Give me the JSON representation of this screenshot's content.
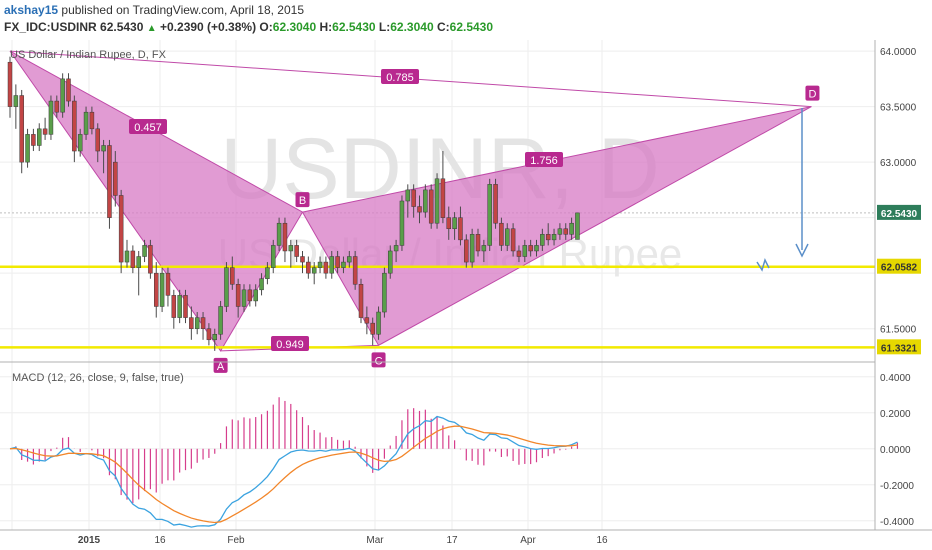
{
  "header": {
    "author": "akshay15",
    "published_text": "published on TradingView.com, April 18, 2015",
    "symbol": "FX_IDC:USDINR",
    "last": "62.5430",
    "change": "+0.2390 (+0.38%)",
    "open_label": "O:",
    "open": "62.3040",
    "high_label": "H:",
    "high": "62.5430",
    "low_label": "L:",
    "low": "62.3040",
    "close_label": "C:",
    "close": "62.5430"
  },
  "chart_data": {
    "type": "candlestick",
    "title": "US Dollar / Indian Rupee, D, FX",
    "watermark_symbol": "USDINR, D",
    "watermark_name": "US Dollar / Indian Rupee",
    "price_axis": {
      "ticks": [
        "64.0000",
        "63.5000",
        "63.0000",
        "61.5000"
      ],
      "tick_values": [
        64.0,
        63.5,
        63.0,
        61.5
      ],
      "range": [
        61.2,
        64.1
      ]
    },
    "x_ticks": [
      "2015",
      "16",
      "Feb",
      "Mar",
      "17",
      "Apr",
      "16"
    ],
    "price_labels": [
      {
        "text": "62.5430",
        "value": 62.543,
        "color": "#2e7d5b"
      },
      {
        "text": "62.0582",
        "value": 62.0582,
        "color": "#e6d800"
      },
      {
        "text": "61.3321",
        "value": 61.3321,
        "color": "#e6d800"
      }
    ],
    "horizontal_levels": [
      62.0582,
      61.3321
    ],
    "harmonic_pattern": {
      "points": [
        {
          "label": "",
          "date_index": 0,
          "price": 64.0
        },
        {
          "label": "A",
          "date_index": 36,
          "price": 61.3
        },
        {
          "label": "B",
          "date_index": 50,
          "price": 62.55
        },
        {
          "label": "C",
          "date_index": 63,
          "price": 61.35
        },
        {
          "label": "D",
          "date_index": 137,
          "price": 63.5
        }
      ],
      "ratios": [
        "0.457",
        "0.785",
        "0.949",
        "1.756"
      ]
    },
    "candles": [
      [
        63.9,
        63.95,
        63.4,
        63.5
      ],
      [
        63.5,
        63.7,
        63.3,
        63.6
      ],
      [
        63.6,
        63.65,
        62.9,
        63.0
      ],
      [
        63.0,
        63.3,
        62.95,
        63.25
      ],
      [
        63.25,
        63.3,
        63.1,
        63.15
      ],
      [
        63.15,
        63.35,
        63.1,
        63.3
      ],
      [
        63.3,
        63.4,
        63.2,
        63.25
      ],
      [
        63.25,
        63.6,
        63.2,
        63.55
      ],
      [
        63.55,
        63.6,
        63.4,
        63.45
      ],
      [
        63.45,
        63.8,
        63.4,
        63.75
      ],
      [
        63.75,
        63.8,
        63.5,
        63.55
      ],
      [
        63.55,
        63.6,
        63.0,
        63.1
      ],
      [
        63.1,
        63.3,
        63.05,
        63.25
      ],
      [
        63.25,
        63.5,
        63.2,
        63.45
      ],
      [
        63.45,
        63.5,
        63.25,
        63.3
      ],
      [
        63.3,
        63.35,
        63.0,
        63.1
      ],
      [
        63.1,
        63.2,
        62.9,
        63.15
      ],
      [
        63.15,
        63.2,
        62.4,
        62.5
      ],
      [
        63.0,
        63.1,
        62.6,
        62.7
      ],
      [
        62.7,
        62.75,
        62.0,
        62.1
      ],
      [
        62.1,
        62.3,
        62.05,
        62.2
      ],
      [
        62.2,
        62.25,
        62.0,
        62.05
      ],
      [
        62.05,
        62.2,
        61.8,
        62.15
      ],
      [
        62.15,
        62.3,
        62.1,
        62.25
      ],
      [
        62.25,
        62.3,
        61.95,
        62.0
      ],
      [
        62.0,
        62.1,
        61.6,
        61.7
      ],
      [
        61.7,
        62.05,
        61.65,
        62.0
      ],
      [
        62.0,
        62.05,
        61.7,
        61.8
      ],
      [
        61.8,
        61.85,
        61.5,
        61.6
      ],
      [
        61.6,
        61.85,
        61.55,
        61.8
      ],
      [
        61.8,
        61.85,
        61.55,
        61.6
      ],
      [
        61.6,
        61.7,
        61.4,
        61.5
      ],
      [
        61.5,
        61.65,
        61.45,
        61.6
      ],
      [
        61.6,
        61.65,
        61.4,
        61.5
      ],
      [
        61.5,
        61.55,
        61.35,
        61.4
      ],
      [
        61.4,
        61.5,
        61.3,
        61.45
      ],
      [
        61.45,
        61.75,
        61.4,
        61.7
      ],
      [
        61.7,
        62.1,
        61.65,
        62.05
      ],
      [
        62.05,
        62.15,
        61.85,
        61.9
      ],
      [
        61.9,
        61.95,
        61.6,
        61.7
      ],
      [
        61.7,
        61.9,
        61.65,
        61.85
      ],
      [
        61.85,
        61.9,
        61.7,
        61.75
      ],
      [
        61.75,
        61.9,
        61.7,
        61.85
      ],
      [
        61.85,
        62.0,
        61.8,
        61.95
      ],
      [
        61.95,
        62.1,
        61.9,
        62.05
      ],
      [
        62.05,
        62.3,
        62.0,
        62.25
      ],
      [
        62.25,
        62.5,
        62.2,
        62.45
      ],
      [
        62.45,
        62.5,
        62.1,
        62.2
      ],
      [
        62.2,
        62.3,
        62.05,
        62.25
      ],
      [
        62.25,
        62.3,
        62.1,
        62.15
      ],
      [
        62.15,
        62.2,
        62.0,
        62.1
      ],
      [
        62.1,
        62.15,
        61.95,
        62.0
      ],
      [
        62.0,
        62.1,
        61.9,
        62.05
      ],
      [
        62.05,
        62.15,
        62.0,
        62.1
      ],
      [
        62.1,
        62.15,
        61.95,
        62.0
      ],
      [
        62.0,
        62.2,
        61.95,
        62.15
      ],
      [
        62.15,
        62.2,
        62.0,
        62.05
      ],
      [
        62.05,
        62.15,
        62.0,
        62.1
      ],
      [
        62.1,
        62.2,
        62.05,
        62.15
      ],
      [
        62.15,
        62.2,
        61.85,
        61.9
      ],
      [
        61.9,
        61.95,
        61.55,
        61.6
      ],
      [
        61.6,
        61.7,
        61.45,
        61.55
      ],
      [
        61.55,
        61.6,
        61.35,
        61.45
      ],
      [
        61.45,
        61.7,
        61.4,
        61.65
      ],
      [
        61.65,
        62.05,
        61.6,
        62.0
      ],
      [
        62.0,
        62.25,
        61.95,
        62.2
      ],
      [
        62.2,
        62.3,
        62.1,
        62.25
      ],
      [
        62.25,
        62.7,
        62.2,
        62.65
      ],
      [
        62.65,
        62.8,
        62.5,
        62.75
      ],
      [
        62.75,
        62.8,
        62.5,
        62.6
      ],
      [
        62.6,
        62.7,
        62.45,
        62.55
      ],
      [
        62.55,
        62.8,
        62.5,
        62.75
      ],
      [
        62.75,
        62.8,
        62.4,
        62.45
      ],
      [
        62.45,
        62.9,
        62.4,
        62.85
      ],
      [
        62.85,
        63.1,
        62.45,
        62.5
      ],
      [
        62.5,
        62.6,
        62.3,
        62.4
      ],
      [
        62.4,
        62.55,
        62.3,
        62.5
      ],
      [
        62.5,
        62.6,
        62.25,
        62.3
      ],
      [
        62.3,
        62.35,
        62.05,
        62.1
      ],
      [
        62.1,
        62.4,
        62.05,
        62.35
      ],
      [
        62.35,
        62.4,
        62.15,
        62.2
      ],
      [
        62.2,
        62.3,
        62.1,
        62.25
      ],
      [
        62.25,
        62.85,
        62.2,
        62.8
      ],
      [
        62.8,
        62.85,
        62.4,
        62.45
      ],
      [
        62.45,
        62.5,
        62.2,
        62.25
      ],
      [
        62.25,
        62.45,
        62.2,
        62.4
      ],
      [
        62.4,
        62.45,
        62.15,
        62.2
      ],
      [
        62.2,
        62.25,
        62.1,
        62.15
      ],
      [
        62.15,
        62.3,
        62.1,
        62.25
      ],
      [
        62.25,
        62.3,
        62.15,
        62.2
      ],
      [
        62.2,
        62.3,
        62.15,
        62.25
      ],
      [
        62.25,
        62.4,
        62.2,
        62.35
      ],
      [
        62.35,
        62.45,
        62.25,
        62.3
      ],
      [
        62.3,
        62.4,
        62.25,
        62.35
      ],
      [
        62.35,
        62.45,
        62.3,
        62.4
      ],
      [
        62.4,
        62.45,
        62.3,
        62.35
      ],
      [
        62.35,
        62.5,
        62.3,
        62.45
      ],
      [
        62.304,
        62.543,
        62.304,
        62.543
      ]
    ],
    "macd": {
      "title": "MACD (12, 26, close, 9, false, true)",
      "ticks": [
        "0.4000",
        "0.2000",
        "0.0000",
        "-0.2000",
        "-0.4000"
      ],
      "tick_values": [
        0.4,
        0.2,
        0.0,
        -0.2,
        -0.4
      ],
      "range": [
        -0.44,
        0.46
      ]
    }
  }
}
